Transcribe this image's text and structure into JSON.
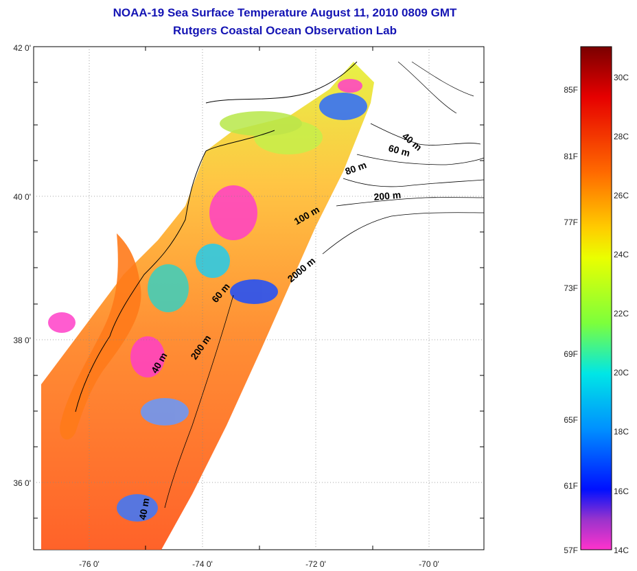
{
  "header": {
    "title_line1": "NOAA-19 Sea Surface Temperature August 11, 2010 0809 GMT",
    "title_line2": "Rutgers Coastal Ocean Observation Lab"
  },
  "map": {
    "lat_ticks": [
      "42 0'",
      "40 0'",
      "38 0'",
      "36 0'"
    ],
    "lon_ticks": [
      "-76 0'",
      "-74 0'",
      "-72 0'",
      "-70 0'"
    ],
    "depth_labels": [
      "40 m",
      "60 m",
      "80 m",
      "200 m",
      "100 m",
      "2000 m",
      "60 m",
      "200 m",
      "40 m",
      "40 m"
    ],
    "land_color": "#ffffff",
    "coast_color": "#000000"
  },
  "colorbar": {
    "fahrenheit_labels": [
      "85F",
      "81F",
      "77F",
      "73F",
      "69F",
      "65F",
      "61F",
      "57F"
    ],
    "celsius_labels": [
      "30C",
      "28C",
      "26C",
      "24C",
      "22C",
      "20C",
      "18C",
      "16C",
      "14C"
    ],
    "gradient_stops": [
      "#7a0000",
      "#e60000",
      "#ff6a00",
      "#ffcc00",
      "#eaff00",
      "#7cff3c",
      "#00e6e6",
      "#0090ff",
      "#0010ff",
      "#9a33cc",
      "#ff33cc"
    ]
  }
}
